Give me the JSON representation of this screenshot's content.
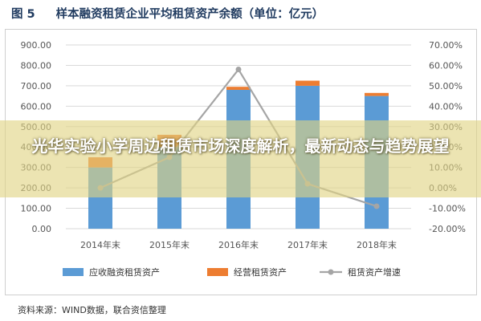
{
  "figure": {
    "number": "图 5",
    "title": "样本融资租赁企业平均租赁资产余额（单位：亿元）"
  },
  "source_note": "资料来源：WIND数据，联合资信整理",
  "overlay_title": "光华实验小学周边租赁市场深度解析，最新动态与趋势展望",
  "colors": {
    "receivables": "#5b9bd5",
    "operating": "#ed7d31",
    "growth": "#a5a5a5",
    "banner": "#e0d482"
  },
  "chart_data": {
    "type": "bar",
    "stacked": true,
    "categories": [
      "2014年末",
      "2015年末",
      "2016年末",
      "2017年末",
      "2018年末"
    ],
    "series": [
      {
        "name": "应收融资租赁资产",
        "type": "bar",
        "axis": "left",
        "values": [
          300,
          400,
          680,
          700,
          650
        ]
      },
      {
        "name": "经营租赁资产",
        "type": "bar",
        "axis": "left",
        "values": [
          50,
          60,
          15,
          25,
          15
        ]
      },
      {
        "name": "租赁资产增速",
        "type": "line",
        "axis": "right",
        "values": [
          0,
          15,
          58,
          2,
          -9
        ]
      }
    ],
    "y_left": {
      "ylim": [
        0,
        900
      ],
      "ticks": [
        "0.00",
        "100.00",
        "200.00",
        "300.00",
        "400.00",
        "500.00",
        "600.00",
        "700.00",
        "800.00",
        "900.00"
      ]
    },
    "y_right": {
      "ylim": [
        -20,
        70
      ],
      "ticks": [
        "-20.00%",
        "-10.00%",
        "0.00%",
        "10.00%",
        "20.00%",
        "30.00%",
        "40.00%",
        "50.00%",
        "60.00%",
        "70.00%"
      ]
    },
    "grid": true,
    "legend_position": "bottom"
  }
}
